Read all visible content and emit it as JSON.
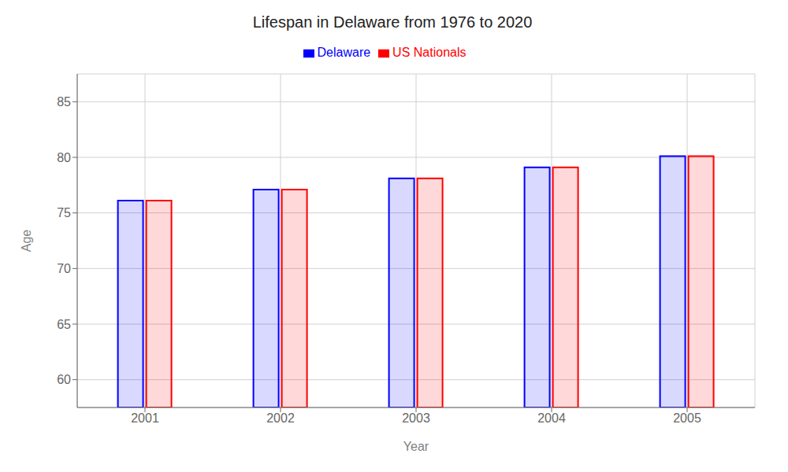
{
  "chart_data": {
    "type": "bar",
    "title": "Lifespan in Delaware from 1976 to 2020",
    "xlabel": "Year",
    "ylabel": "Age",
    "categories": [
      "2001",
      "2002",
      "2003",
      "2004",
      "2005"
    ],
    "series": [
      {
        "name": "Delaware",
        "color": "#0000ff",
        "values": [
          76.1,
          77.1,
          78.1,
          79.1,
          80.1
        ]
      },
      {
        "name": "US Nationals",
        "color": "#ff0000",
        "values": [
          76.1,
          77.1,
          78.1,
          79.1,
          80.1
        ]
      }
    ],
    "ylim": [
      57.5,
      87.5
    ],
    "yticks": [
      60,
      65,
      70,
      75,
      80,
      85
    ],
    "grid": true,
    "legend": "top"
  }
}
